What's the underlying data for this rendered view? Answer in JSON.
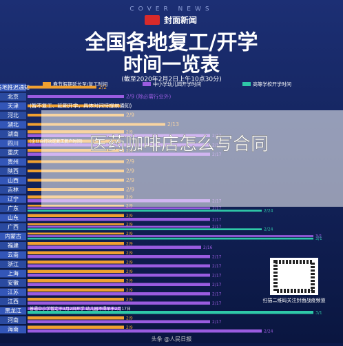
{
  "header": {
    "brand": "封面新闻",
    "brand_en": "COVER NEWS",
    "title_line1": "全国各地复工/开学",
    "title_line2": "时间一览表",
    "subtitle": "(截至2020年2月2日上午10点30分)"
  },
  "legend": [
    {
      "label": "春节假期延长至/复工时间",
      "color": "#f0a030"
    },
    {
      "label": "中小学幼儿园开学时间",
      "color": "#9a5ce0"
    },
    {
      "label": "高等学校开学时间",
      "color": "#2fc8a8"
    }
  ],
  "rows": [
    {
      "name": "各地推迟通知",
      "bars": [
        {
          "label": "2/2",
          "color": "#f0a030"
        }
      ]
    },
    {
      "name": "北京",
      "bars": [
        {
          "label": "2/9 (除必需行业外)",
          "color": "#9a5ce0"
        }
      ]
    },
    {
      "name": "天津",
      "bars": [
        {
          "label": "(暂不复工、延期开学，具体时间待提前通知)",
          "color": "#f0a030"
        }
      ]
    },
    {
      "name": "河北",
      "bars": [
        {
          "label": "2/9",
          "color": "#f0a030"
        }
      ]
    },
    {
      "name": "湖北",
      "bars": [
        {
          "label": "2/13",
          "color": "#f0a030"
        }
      ]
    },
    {
      "name": "湖南",
      "bars": [
        {
          "label": "2/9",
          "color": "#f0a030"
        },
        {
          "label": "2/17",
          "color": "#9a5ce0"
        }
      ]
    },
    {
      "name": "四川",
      "bars": [
        {
          "label": "(企业自行决定复工复产时间)",
          "color": "#f0a030"
        },
        {
          "label": "2/17",
          "color": "#9a5ce0"
        }
      ]
    },
    {
      "name": "重庆",
      "bars": [
        {
          "label": "2/9",
          "color": "#f0a030"
        },
        {
          "label": "2/17",
          "color": "#9a5ce0"
        }
      ]
    },
    {
      "name": "贵州",
      "bars": [
        {
          "label": "2/9",
          "color": "#f0a030"
        }
      ]
    },
    {
      "name": "陕西",
      "bars": [
        {
          "label": "2/9",
          "color": "#f0a030"
        }
      ]
    },
    {
      "name": "山西",
      "bars": [
        {
          "label": "2/9",
          "color": "#f0a030"
        }
      ]
    },
    {
      "name": "吉林",
      "bars": [
        {
          "label": "2/9",
          "color": "#f0a030"
        }
      ]
    },
    {
      "name": "辽宁",
      "bars": [
        {
          "label": "2/9",
          "color": "#f0a030"
        },
        {
          "label": "2/17",
          "color": "#9a5ce0"
        }
      ]
    },
    {
      "name": "广东",
      "bars": [
        {
          "label": "2/9",
          "color": "#f0a030"
        },
        {
          "label": "2/17",
          "color": "#9a5ce0"
        },
        {
          "label": "2/24",
          "color": "#2fc8a8"
        }
      ]
    },
    {
      "name": "山东",
      "bars": [
        {
          "label": "2/9",
          "color": "#f0a030"
        },
        {
          "label": "2/17",
          "color": "#9a5ce0"
        }
      ]
    },
    {
      "name": "广西",
      "bars": [
        {
          "label": "2/9",
          "color": "#f0a030"
        },
        {
          "label": "2/17",
          "color": "#9a5ce0"
        },
        {
          "label": "2/24",
          "color": "#2fc8a8"
        }
      ]
    },
    {
      "name": "内蒙古",
      "bars": [
        {
          "label": "2/9",
          "color": "#f0a030"
        },
        {
          "label": "3/1",
          "color": "#9a5ce0"
        },
        {
          "label": "3/1",
          "color": "#2fc8a8"
        }
      ]
    },
    {
      "name": "福建",
      "bars": [
        {
          "label": "2/9",
          "color": "#f0a030"
        },
        {
          "label": "2/16",
          "color": "#9a5ce0"
        }
      ]
    },
    {
      "name": "云南",
      "bars": [
        {
          "label": "2/9",
          "color": "#f0a030"
        },
        {
          "label": "2/17",
          "color": "#9a5ce0"
        }
      ]
    },
    {
      "name": "浙江",
      "bars": [
        {
          "label": "2/9",
          "color": "#f0a030"
        },
        {
          "label": "2/17",
          "color": "#9a5ce0"
        }
      ]
    },
    {
      "name": "上海",
      "bars": [
        {
          "label": "2/9",
          "color": "#f0a030"
        },
        {
          "label": "2/17",
          "color": "#9a5ce0"
        }
      ]
    },
    {
      "name": "安徽",
      "bars": [
        {
          "label": "2/9",
          "color": "#f0a030"
        },
        {
          "label": "2/17",
          "color": "#9a5ce0"
        }
      ]
    },
    {
      "name": "江苏",
      "bars": [
        {
          "label": "2/9",
          "color": "#f0a030"
        },
        {
          "label": "2/17",
          "color": "#9a5ce0"
        }
      ]
    },
    {
      "name": "江西",
      "bars": [
        {
          "label": "2/9",
          "color": "#f0a030"
        },
        {
          "label": "2/17",
          "color": "#9a5ce0"
        }
      ]
    },
    {
      "name": "黑龙江",
      "bars": [
        {
          "label": "普通中小学暂定于3月2日开学 幼儿园不得早于2月17日",
          "color": "#9a5ce0"
        },
        {
          "label": "3/1",
          "color": "#2fc8a8"
        }
      ]
    },
    {
      "name": "河南",
      "bars": [
        {
          "label": "2/9",
          "color": "#f0a030"
        },
        {
          "label": "2/17",
          "color": "#9a5ce0"
        }
      ]
    },
    {
      "name": "海南",
      "bars": [
        {
          "label": "2/9",
          "color": "#f0a030"
        },
        {
          "label": "2/24",
          "color": "#9a5ce0"
        }
      ]
    }
  ],
  "qr_caption": "扫描二维码关注封面战疫频道",
  "overlay_text": "医药咖啡店怎么写合同",
  "footer": "头条 @人民日报"
}
